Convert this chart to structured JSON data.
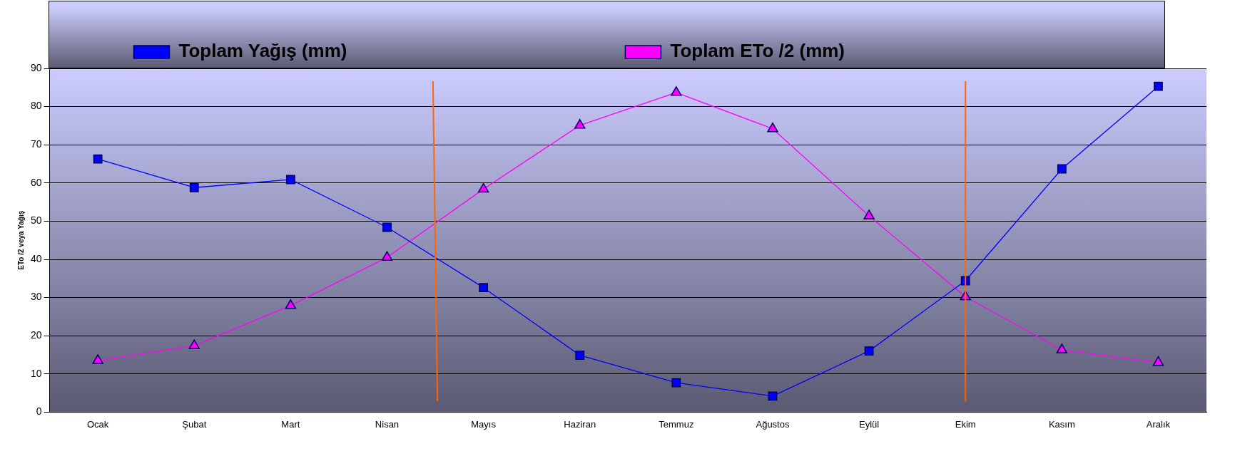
{
  "chart_data": {
    "type": "line",
    "ylabel": "ETo /2 veya Yağış",
    "categories": [
      "Ocak",
      "Şubat",
      "Mart",
      "Nisan",
      "Mayıs",
      "Haziran",
      "Temmuz",
      "Ağustos",
      "Eylül",
      "Ekim",
      "Kasım",
      "Aralık"
    ],
    "series": [
      {
        "name": "Toplam Yağış (mm)",
        "color": "#0000ff",
        "marker": "square",
        "values": [
          66.3,
          58.8,
          60.9,
          48.4,
          32.6,
          14.9,
          7.7,
          4.2,
          16.0,
          34.4,
          63.7,
          85.3
        ]
      },
      {
        "name": "Toplam ETo /2 (mm)",
        "color": "#ff00ff",
        "marker": "triangle",
        "values": [
          13.5,
          17.4,
          27.9,
          40.5,
          58.4,
          75.1,
          83.7,
          74.2,
          51.4,
          30.2,
          16.3,
          13.0
        ]
      }
    ],
    "ylim": [
      0,
      90
    ],
    "yticks": [
      0,
      10,
      20,
      30,
      40,
      50,
      60,
      70,
      80,
      90
    ],
    "grid": "y",
    "legend": "top",
    "ref_lines": [
      {
        "axis": "x",
        "value": "Ekim",
        "color": "#ff6600"
      }
    ]
  }
}
